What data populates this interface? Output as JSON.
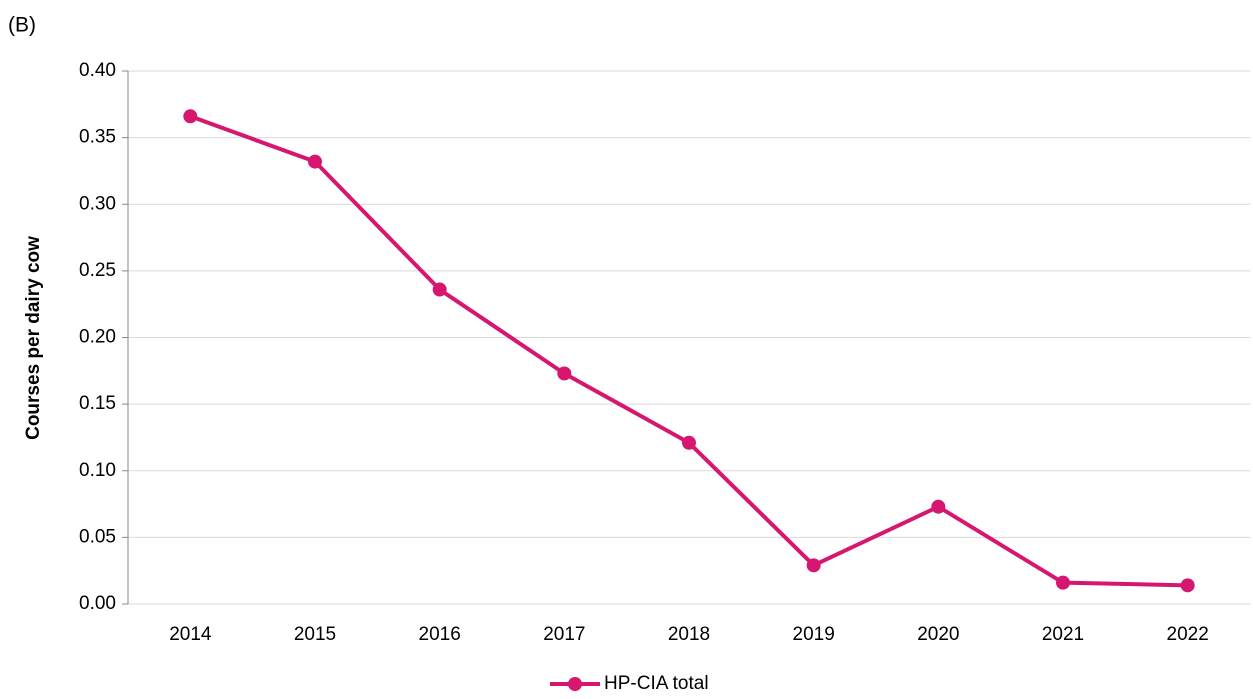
{
  "chart_data": {
    "type": "line",
    "annotation": "(B)",
    "y_label": "Courses per dairy cow",
    "categories": [
      "2014",
      "2015",
      "2016",
      "2017",
      "2018",
      "2019",
      "2020",
      "2021",
      "2022"
    ],
    "series": [
      {
        "name": "HP-CIA total",
        "color": "#d6166f",
        "values": [
          0.366,
          0.332,
          0.236,
          0.173,
          0.121,
          0.029,
          0.073,
          0.016,
          0.014
        ]
      }
    ],
    "ylim": [
      0,
      0.4
    ],
    "yticks": [
      {
        "value": 0,
        "label": "0.00"
      },
      {
        "value": 0.05,
        "label": "0.05"
      },
      {
        "value": 0.1,
        "label": "0.10"
      },
      {
        "value": 0.15,
        "label": "0.15"
      },
      {
        "value": 0.2,
        "label": "0.20"
      },
      {
        "value": 0.25,
        "label": "0.25"
      },
      {
        "value": 0.3,
        "label": "0.30"
      },
      {
        "value": 0.35,
        "label": "0.35"
      },
      {
        "value": 0.4,
        "label": "0.40"
      }
    ],
    "grid": true,
    "legend": "bottom"
  }
}
